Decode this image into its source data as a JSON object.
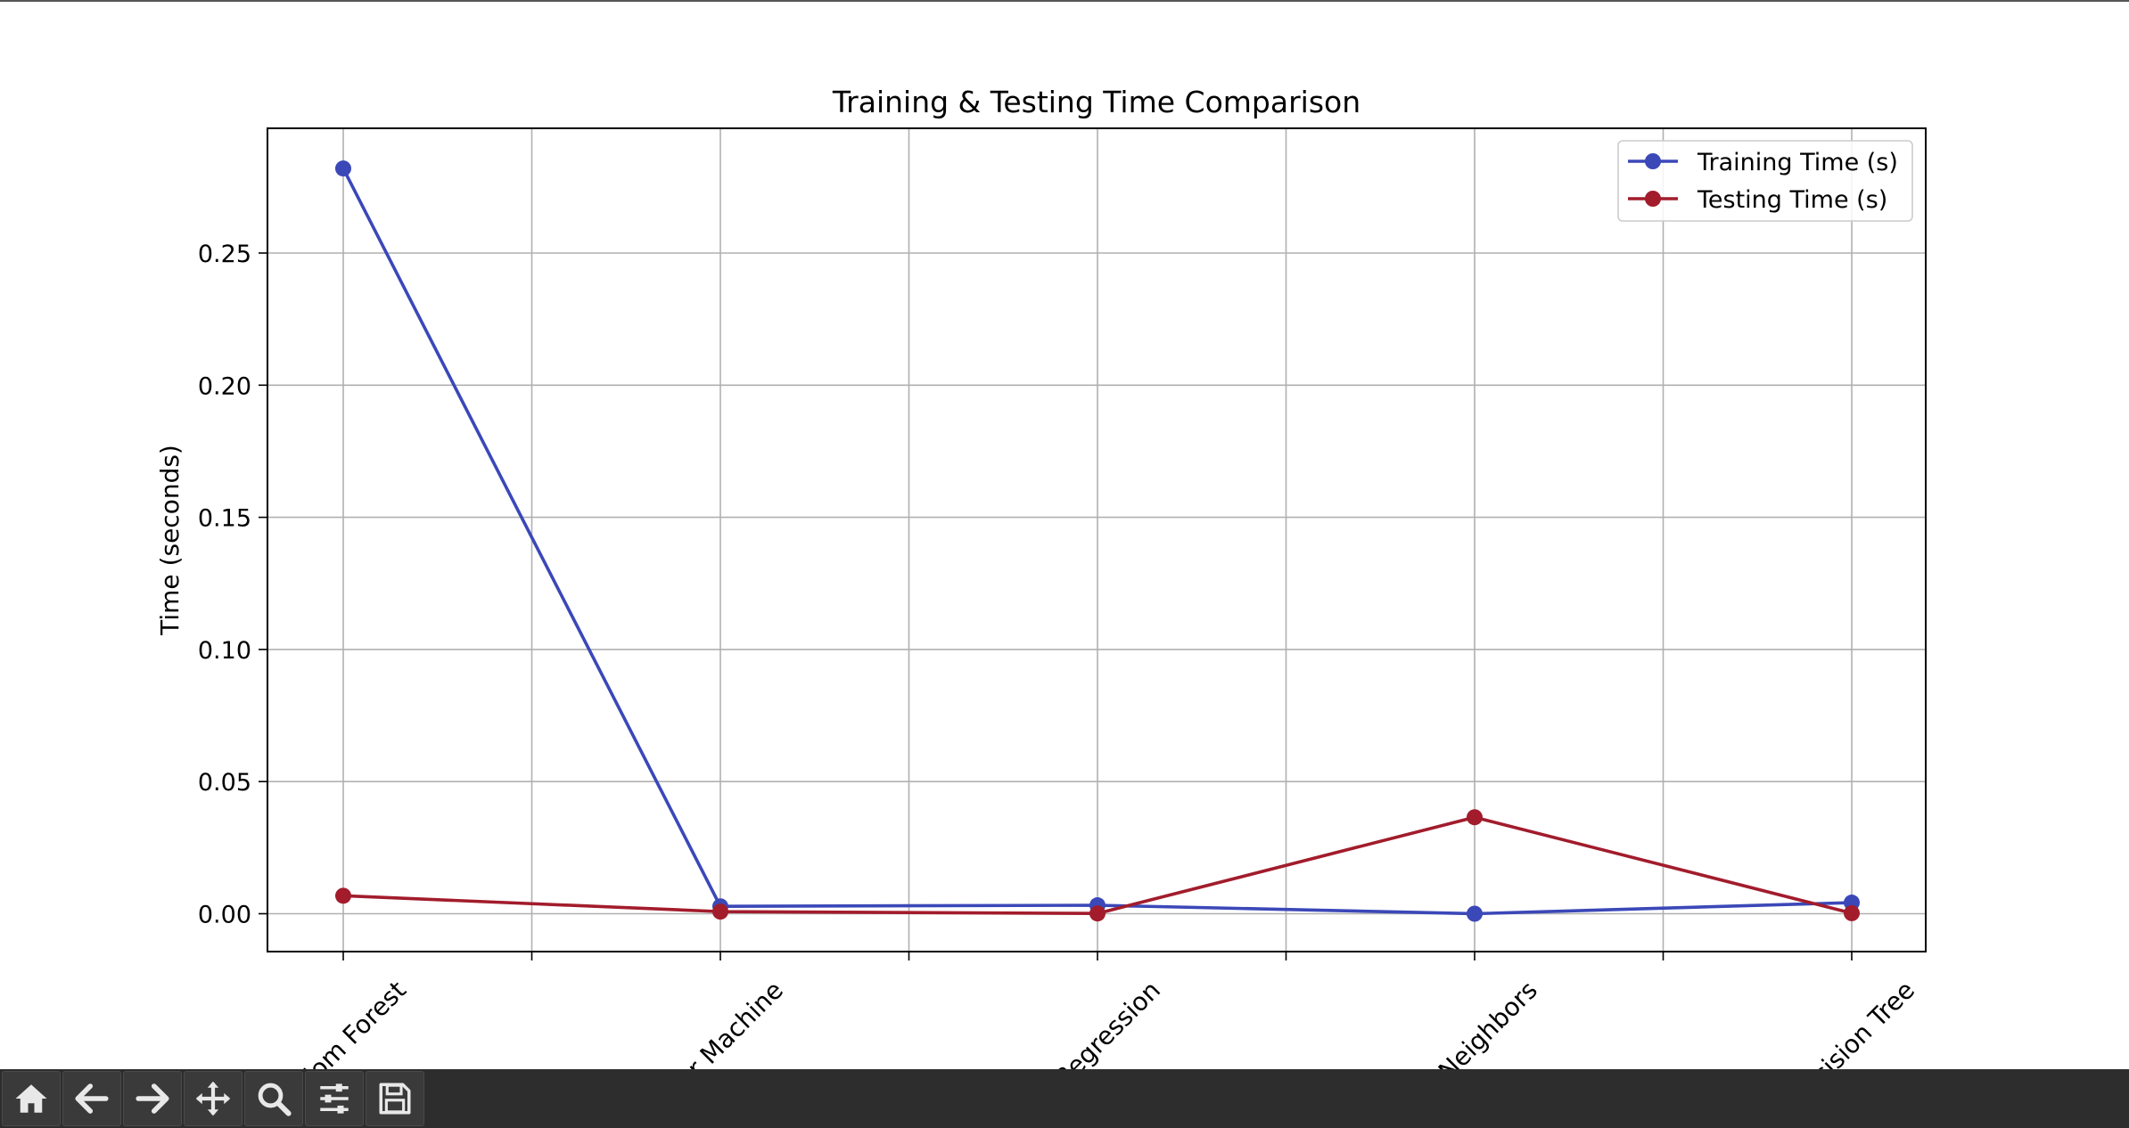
{
  "chart_data": {
    "type": "line",
    "title": "Training & Testing Time Comparison",
    "xlabel": "",
    "ylabel": "Time (seconds)",
    "categories": [
      "dom Forest",
      "or Machine",
      "Regression",
      "Neighbors",
      "cision Tree"
    ],
    "series": [
      {
        "name": "Training Time (s)",
        "color": "#3b48b8",
        "values": [
          0.282,
          0.0028,
          0.0032,
          0.0,
          0.0042
        ]
      },
      {
        "name": "Testing Time (s)",
        "color": "#a21c2c",
        "values": [
          0.0068,
          0.0008,
          0.0001,
          0.0365,
          0.0002
        ]
      }
    ],
    "ylim": [
      -0.014,
      0.297
    ],
    "yticks": [
      0.0,
      0.05,
      0.1,
      0.15,
      0.2,
      0.25
    ],
    "ytick_labels": [
      "0.00",
      "0.05",
      "0.10",
      "0.15",
      "0.20",
      "0.25"
    ],
    "grid": true,
    "legend": "top-right"
  },
  "toolbar": {
    "buttons": [
      "home-icon",
      "back-arrow-icon",
      "forward-arrow-icon",
      "pan-icon",
      "zoom-icon",
      "configure-icon",
      "save-icon"
    ]
  }
}
